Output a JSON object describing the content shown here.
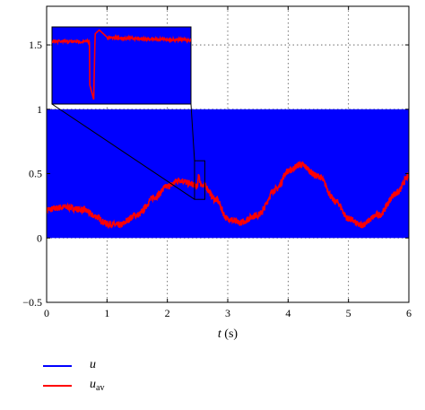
{
  "chart_data": {
    "type": "line",
    "xlabel": "t (s)",
    "xlim": [
      0,
      6
    ],
    "ylim": [
      -0.5,
      1.8
    ],
    "xticks": [
      0,
      1,
      2,
      3,
      4,
      5,
      6
    ],
    "yticks": [
      -0.5,
      0,
      0.5,
      1,
      1.5
    ],
    "ytick_labels": [
      "−0.5",
      "0",
      "0.5",
      "1",
      "1.5"
    ],
    "grid": true,
    "legend_position": "bottom-left",
    "series": [
      {
        "name": "u",
        "label_main": "u",
        "label_sub": "",
        "color": "#0000ff",
        "description_values": "binary PWM switching between 0 and 1 over t = 0 to 6 s",
        "x": [
          0,
          6
        ],
        "y_min": [
          0,
          0
        ],
        "y_max": [
          1,
          1
        ]
      },
      {
        "name": "u_av",
        "label_main": "u",
        "label_sub": "av",
        "color": "#ff0000",
        "x": [
          0,
          0.3,
          0.6,
          0.8,
          1.0,
          1.2,
          1.5,
          1.8,
          2.0,
          2.2,
          2.4,
          2.5,
          2.52,
          2.55,
          2.6,
          2.8,
          3.0,
          3.2,
          3.5,
          3.8,
          4.0,
          4.2,
          4.5,
          4.8,
          5.0,
          5.2,
          5.5,
          5.8,
          6.0
        ],
        "y": [
          0.22,
          0.24,
          0.22,
          0.17,
          0.11,
          0.1,
          0.18,
          0.32,
          0.4,
          0.45,
          0.42,
          0.4,
          0.5,
          0.42,
          0.41,
          0.3,
          0.15,
          0.12,
          0.18,
          0.38,
          0.52,
          0.57,
          0.48,
          0.28,
          0.15,
          0.1,
          0.18,
          0.35,
          0.48
        ]
      }
    ],
    "inset": {
      "description": "zoom of region around t = 2.5 s showing a spike of u_av",
      "source_xlim": [
        2.45,
        2.62
      ],
      "source_ylim": [
        0.3,
        0.6
      ]
    }
  }
}
